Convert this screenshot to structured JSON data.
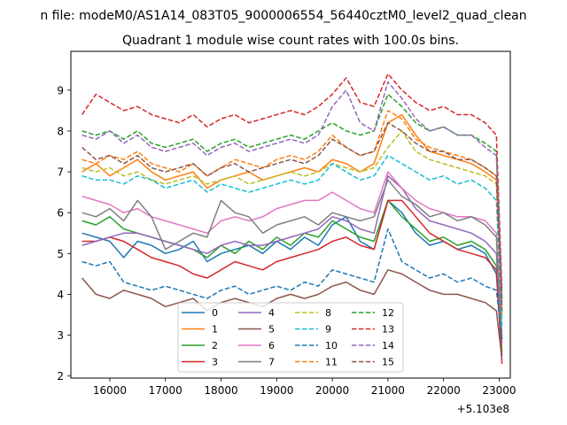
{
  "figure": {
    "suptitle": "n file: modeM0/AS1A14_083T05_9000006554_56440cztM0_level2_quad_clean",
    "title": "Quadrant 1 module wise count rates with 100.0s bins."
  },
  "chart_data": {
    "type": "line",
    "title": "Quadrant 1 module wise count rates with 100.0s bins.",
    "xlabel": "",
    "ylabel": "",
    "x_offset_label": "+5.103e8",
    "xlim": [
      15300,
      23200
    ],
    "ylim": [
      1.95,
      9.95
    ],
    "xticks": [
      16000,
      17000,
      18000,
      19000,
      20000,
      21000,
      22000,
      23000
    ],
    "xtick_labels": [
      "16000",
      "17000",
      "18000",
      "19000",
      "20000",
      "21000",
      "22000",
      "23000"
    ],
    "yticks": [
      2,
      3,
      4,
      5,
      6,
      7,
      8,
      9
    ],
    "ytick_labels": [
      "2",
      "3",
      "4",
      "5",
      "6",
      "7",
      "8",
      "9"
    ],
    "grid": false,
    "legend_position": "lower center",
    "x": [
      15500,
      15750,
      16000,
      16250,
      16500,
      16750,
      17000,
      17250,
      17500,
      17750,
      18000,
      18250,
      18500,
      18750,
      19000,
      19250,
      19500,
      19750,
      20000,
      20250,
      20500,
      20750,
      21000,
      21250,
      21500,
      21750,
      22000,
      22250,
      22500,
      22750,
      22950,
      23050
    ],
    "series": [
      {
        "name": "0",
        "color": "#1f77b4",
        "dash": "solid",
        "values": [
          5.5,
          5.4,
          5.3,
          4.9,
          5.3,
          5.2,
          5.0,
          5.1,
          5.3,
          4.8,
          5.0,
          5.1,
          5.2,
          5.0,
          5.3,
          5.1,
          5.4,
          5.2,
          5.7,
          5.9,
          5.3,
          5.1,
          6.3,
          6.0,
          5.5,
          5.2,
          5.3,
          5.1,
          5.2,
          5.0,
          4.5,
          2.5
        ]
      },
      {
        "name": "1",
        "color": "#ff7f0e",
        "dash": "solid",
        "values": [
          7.0,
          7.2,
          6.9,
          7.1,
          7.3,
          7.0,
          6.8,
          6.9,
          7.0,
          6.6,
          6.8,
          6.9,
          7.0,
          6.8,
          6.9,
          7.0,
          7.1,
          7.0,
          7.3,
          7.2,
          7.0,
          7.2,
          8.2,
          8.4,
          7.9,
          7.5,
          7.4,
          7.3,
          7.2,
          7.0,
          6.8,
          3.5
        ]
      },
      {
        "name": "2",
        "color": "#2ca02c",
        "dash": "solid",
        "values": [
          5.8,
          5.7,
          5.9,
          5.6,
          5.5,
          5.4,
          5.3,
          5.2,
          5.1,
          4.9,
          5.2,
          5.0,
          5.3,
          5.1,
          5.4,
          5.2,
          5.5,
          5.4,
          5.8,
          5.6,
          5.4,
          5.3,
          6.3,
          5.9,
          5.6,
          5.3,
          5.4,
          5.2,
          5.3,
          5.1,
          4.7,
          2.6
        ]
      },
      {
        "name": "3",
        "color": "#d62728",
        "dash": "solid",
        "values": [
          5.3,
          5.3,
          5.4,
          5.3,
          5.1,
          4.9,
          4.8,
          4.7,
          4.5,
          4.4,
          4.6,
          4.8,
          4.7,
          4.6,
          4.8,
          4.9,
          5.0,
          5.1,
          5.3,
          5.4,
          5.2,
          5.1,
          6.3,
          6.3,
          5.9,
          5.5,
          5.3,
          5.1,
          5.0,
          4.9,
          4.6,
          2.3
        ]
      },
      {
        "name": "4",
        "color": "#9467bd",
        "dash": "solid",
        "values": [
          5.2,
          5.3,
          5.4,
          5.5,
          5.5,
          5.4,
          5.3,
          5.2,
          5.1,
          5.0,
          5.2,
          5.3,
          5.2,
          5.2,
          5.3,
          5.4,
          5.5,
          5.6,
          5.9,
          5.8,
          5.6,
          5.5,
          6.9,
          6.6,
          6.1,
          5.8,
          5.7,
          5.6,
          5.5,
          5.3,
          5.0,
          2.8
        ]
      },
      {
        "name": "5",
        "color": "#8c564b",
        "dash": "solid",
        "values": [
          4.4,
          4.0,
          3.9,
          4.1,
          4.0,
          3.9,
          3.7,
          3.8,
          3.9,
          3.6,
          3.8,
          3.9,
          3.8,
          3.7,
          3.9,
          4.0,
          3.9,
          4.0,
          4.2,
          4.3,
          4.1,
          4.0,
          4.6,
          4.5,
          4.3,
          4.1,
          4.0,
          4.0,
          3.9,
          3.8,
          3.6,
          2.4
        ]
      },
      {
        "name": "6",
        "color": "#e377c2",
        "dash": "solid",
        "values": [
          6.4,
          6.3,
          6.2,
          6.0,
          6.1,
          5.9,
          5.8,
          5.7,
          5.6,
          5.5,
          5.8,
          5.9,
          5.8,
          5.9,
          6.1,
          6.2,
          6.3,
          6.3,
          6.5,
          6.3,
          6.1,
          6.0,
          7.0,
          6.6,
          6.3,
          6.1,
          6.0,
          5.9,
          5.9,
          5.8,
          5.5,
          3.0
        ]
      },
      {
        "name": "7",
        "color": "#7f7f7f",
        "dash": "solid",
        "values": [
          6.0,
          5.9,
          6.1,
          5.8,
          6.3,
          5.9,
          5.1,
          5.3,
          5.5,
          5.4,
          6.3,
          6.0,
          5.9,
          5.5,
          5.7,
          5.8,
          5.9,
          5.7,
          6.0,
          5.9,
          5.8,
          5.9,
          6.8,
          6.4,
          6.2,
          5.9,
          6.0,
          5.8,
          5.9,
          5.7,
          5.4,
          2.9
        ]
      },
      {
        "name": "8",
        "color": "#bcbd22",
        "dash": "dashed",
        "values": [
          7.1,
          7.0,
          7.1,
          6.9,
          7.0,
          6.8,
          6.7,
          6.8,
          6.9,
          6.7,
          6.8,
          6.9,
          6.7,
          6.8,
          6.9,
          7.0,
          6.9,
          7.0,
          7.2,
          7.1,
          7.0,
          7.1,
          7.6,
          8.0,
          7.5,
          7.3,
          7.2,
          7.1,
          7.0,
          6.9,
          6.7,
          3.4
        ]
      },
      {
        "name": "9",
        "color": "#17becf",
        "dash": "dashed",
        "values": [
          6.9,
          6.8,
          6.8,
          6.7,
          6.9,
          6.8,
          6.6,
          6.7,
          6.8,
          6.5,
          6.7,
          6.6,
          6.5,
          6.6,
          6.7,
          6.8,
          6.7,
          6.8,
          7.2,
          7.0,
          6.8,
          6.9,
          7.4,
          7.2,
          7.0,
          6.8,
          6.9,
          6.7,
          6.8,
          6.6,
          6.3,
          3.2
        ]
      },
      {
        "name": "10",
        "color": "#1f77b4",
        "dash": "dashed",
        "values": [
          4.8,
          4.7,
          4.8,
          4.3,
          4.2,
          4.1,
          4.2,
          4.1,
          4.0,
          3.9,
          4.1,
          4.2,
          4.0,
          4.1,
          4.2,
          4.1,
          4.3,
          4.2,
          4.6,
          4.5,
          4.4,
          4.3,
          5.6,
          4.8,
          4.6,
          4.4,
          4.5,
          4.3,
          4.4,
          4.2,
          4.1,
          2.9
        ]
      },
      {
        "name": "11",
        "color": "#ff7f0e",
        "dash": "dashed",
        "values": [
          7.3,
          7.2,
          7.4,
          7.3,
          7.5,
          7.2,
          7.1,
          7.0,
          7.2,
          6.9,
          7.1,
          7.3,
          7.2,
          7.1,
          7.3,
          7.4,
          7.3,
          7.5,
          7.9,
          7.6,
          7.4,
          7.5,
          8.5,
          8.3,
          7.8,
          7.6,
          7.5,
          7.4,
          7.3,
          7.1,
          6.9,
          3.7
        ]
      },
      {
        "name": "12",
        "color": "#2ca02c",
        "dash": "dashed",
        "values": [
          8.0,
          7.9,
          8.0,
          7.8,
          8.0,
          7.7,
          7.6,
          7.7,
          7.8,
          7.5,
          7.7,
          7.8,
          7.6,
          7.7,
          7.8,
          7.9,
          7.8,
          8.0,
          8.2,
          8.0,
          7.9,
          8.0,
          8.9,
          8.6,
          8.2,
          8.0,
          8.1,
          7.9,
          7.9,
          7.7,
          7.5,
          3.9
        ]
      },
      {
        "name": "13",
        "color": "#d62728",
        "dash": "dashed",
        "values": [
          8.4,
          8.9,
          8.7,
          8.5,
          8.6,
          8.4,
          8.3,
          8.2,
          8.4,
          8.1,
          8.3,
          8.4,
          8.2,
          8.3,
          8.4,
          8.5,
          8.4,
          8.6,
          8.9,
          9.3,
          8.7,
          8.6,
          9.4,
          9.0,
          8.7,
          8.5,
          8.6,
          8.4,
          8.4,
          8.2,
          7.9,
          4.1
        ]
      },
      {
        "name": "14",
        "color": "#9467bd",
        "dash": "dashed",
        "values": [
          7.9,
          7.8,
          8.0,
          7.7,
          7.9,
          7.6,
          7.5,
          7.6,
          7.7,
          7.4,
          7.6,
          7.7,
          7.5,
          7.6,
          7.7,
          7.8,
          7.7,
          7.9,
          8.6,
          9.0,
          8.2,
          8.0,
          9.2,
          8.8,
          8.3,
          8.0,
          8.1,
          7.9,
          7.9,
          7.6,
          7.4,
          3.8
        ]
      },
      {
        "name": "15",
        "color": "#8c564b",
        "dash": "dashed",
        "values": [
          7.6,
          7.3,
          7.4,
          7.2,
          7.4,
          7.1,
          7.0,
          7.1,
          7.2,
          6.9,
          7.1,
          7.2,
          7.0,
          7.1,
          7.2,
          7.3,
          7.2,
          7.4,
          7.8,
          7.6,
          7.4,
          7.5,
          8.2,
          8.0,
          7.7,
          7.5,
          7.5,
          7.3,
          7.3,
          7.1,
          6.9,
          3.6
        ]
      }
    ]
  }
}
